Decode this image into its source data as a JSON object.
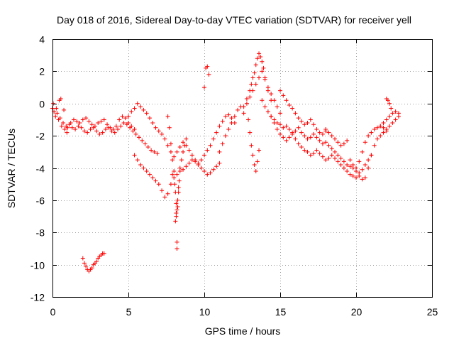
{
  "chart_data": {
    "type": "scatter",
    "title": "Day 018 of 2016, Sidereal Day-to-day VTEC variation (SDTVAR) for receiver yell",
    "xlabel": "GPS time / hours",
    "ylabel": "SDTVAR / TECUs",
    "xlim": [
      0,
      25
    ],
    "ylim": [
      -12,
      4
    ],
    "xticks": [
      0,
      5,
      10,
      15,
      20,
      25
    ],
    "yticks": [
      -12,
      -10,
      -8,
      -6,
      -4,
      -2,
      0,
      2,
      4
    ],
    "xtick_labels": [
      "0",
      "5",
      "10",
      "15",
      "20",
      "25"
    ],
    "ytick_labels": [
      "-12",
      "-10",
      "-8",
      "-6",
      "-4",
      "-2",
      "0",
      "2",
      "4"
    ],
    "grid": true,
    "marker": "+",
    "series": [
      {
        "name": "SDTVAR",
        "color": "#ff0000",
        "x": [
          0.0,
          0.2,
          0.4,
          0.6,
          0.8,
          1.0,
          1.2,
          1.4,
          1.6,
          1.8,
          2.0,
          2.2,
          2.4,
          2.6,
          2.8,
          3.0,
          3.2,
          3.4,
          3.6,
          3.8,
          4.0,
          4.2,
          4.4,
          4.6,
          4.8,
          5.0,
          5.2,
          5.4,
          0.1,
          0.3,
          0.5,
          0.7,
          0.9,
          1.1,
          1.3,
          1.5,
          1.7,
          1.9,
          2.1,
          2.3,
          2.5,
          2.7,
          2.9,
          3.1,
          3.3,
          3.5,
          3.7,
          3.9,
          4.1,
          4.3,
          4.5,
          4.7,
          4.9,
          5.1,
          5.3,
          5.5,
          5.7,
          5.9,
          6.1,
          6.3,
          6.5,
          6.7,
          6.9,
          0.05,
          0.25,
          0.45,
          0.55,
          0.75,
          0.95,
          5.0,
          5.2,
          5.4,
          5.6,
          5.8,
          6.0,
          6.2,
          6.4,
          6.6,
          6.8,
          7.0,
          7.2,
          7.4,
          7.6,
          7.8,
          8.0,
          8.2,
          8.4,
          8.6,
          8.8,
          9.0,
          9.2,
          9.4,
          9.6,
          9.8,
          10.0,
          10.2,
          10.4,
          10.6,
          10.8,
          11.0,
          5.4,
          5.6,
          5.8,
          6.0,
          6.2,
          6.4,
          6.6,
          6.8,
          7.0,
          7.2,
          7.4,
          7.6,
          7.8,
          8.0,
          8.2,
          8.4,
          8.6,
          8.8,
          9.0,
          9.2,
          9.4,
          9.6,
          9.8,
          10.0,
          10.2,
          10.4,
          10.6,
          10.8,
          11.0,
          11.2,
          11.4,
          11.6,
          11.8,
          12.0,
          7.6,
          7.7,
          7.8,
          7.9,
          8.0,
          8.05,
          8.1,
          8.15,
          8.2,
          8.25,
          8.3,
          8.35,
          8.4,
          8.5,
          8.6,
          8.7,
          8.8,
          8.1,
          8.15,
          8.2,
          8.2,
          8.15,
          8.25,
          7.9,
          8.3,
          10.1,
          10.3,
          10.0,
          10.2,
          2.0,
          2.1,
          2.2,
          2.3,
          2.4,
          2.5,
          2.6,
          2.7,
          2.8,
          2.9,
          3.0,
          3.1,
          3.2,
          3.3,
          3.4,
          11.0,
          11.2,
          11.4,
          11.6,
          11.8,
          12.0,
          12.2,
          12.4,
          12.6,
          12.8,
          13.0,
          13.2,
          13.4,
          13.6,
          13.8,
          14.0,
          14.2,
          14.4,
          14.6,
          14.8,
          15.0,
          12.6,
          12.8,
          13.0,
          13.1,
          13.2,
          13.3,
          13.4,
          13.5,
          13.6,
          13.7,
          13.8,
          13.9,
          14.0,
          14.2,
          14.4,
          12.9,
          13.0,
          13.1,
          13.2,
          13.3,
          13.4,
          13.5,
          13.6,
          13.8,
          14.0,
          14.2,
          14.4,
          14.6,
          14.8,
          15.0,
          15.2,
          15.4,
          15.6,
          15.8,
          16.0,
          16.2,
          16.4,
          16.6,
          16.8,
          17.0,
          17.2,
          17.4,
          17.6,
          17.8,
          18.0,
          18.2,
          18.4,
          18.6,
          18.8,
          19.0,
          19.2,
          19.4,
          19.6,
          19.8,
          20.0,
          20.2,
          20.4,
          20.6,
          20.8,
          21.0,
          14.4,
          14.6,
          14.8,
          15.0,
          15.2,
          15.4,
          15.6,
          15.8,
          16.0,
          16.2,
          16.4,
          16.6,
          16.8,
          17.0,
          17.2,
          17.4,
          17.6,
          17.8,
          18.0,
          18.2,
          18.4,
          18.6,
          18.8,
          19.0,
          19.2,
          19.4,
          19.6,
          19.8,
          20.0,
          15.0,
          15.2,
          15.4,
          15.6,
          15.8,
          16.0,
          16.2,
          16.4,
          16.6,
          16.8,
          17.0,
          17.2,
          17.4,
          17.6,
          17.8,
          18.0,
          18.0,
          18.2,
          18.4,
          18.6,
          18.8,
          19.0,
          19.2,
          19.4,
          19.6,
          19.8,
          20.0,
          20.2,
          20.4,
          20.6,
          20.8,
          21.0,
          21.2,
          21.4,
          21.6,
          21.8,
          22.0,
          22.2,
          22.4,
          22.6,
          22.8,
          20.0,
          20.2,
          20.4,
          20.6,
          20.8,
          21.0,
          21.2,
          21.4,
          21.6,
          21.8,
          22.0,
          21.6,
          21.8,
          22.0,
          22.2,
          22.4,
          22.6,
          22.8,
          22.0,
          22.1,
          22.2,
          22.3
        ],
        "y": [
          -0.3,
          -0.8,
          -1.0,
          -1.4,
          -1.6,
          -1.5,
          -1.2,
          -1.0,
          -1.1,
          -1.2,
          -1.0,
          -0.9,
          -1.1,
          -1.3,
          -1.4,
          -1.2,
          -1.1,
          -1.0,
          -1.3,
          -1.5,
          -1.6,
          -1.4,
          -1.0,
          -0.8,
          -0.9,
          -1.2,
          -1.4,
          -1.6,
          -0.5,
          -0.6,
          -0.9,
          -1.2,
          -1.4,
          -1.3,
          -1.5,
          -1.6,
          -1.4,
          -1.5,
          -1.7,
          -1.8,
          -1.6,
          -1.5,
          -1.7,
          -1.9,
          -1.8,
          -1.6,
          -1.5,
          -1.7,
          -1.8,
          -1.6,
          -1.4,
          -1.2,
          -1.3,
          -1.5,
          -1.7,
          -1.9,
          -2.1,
          -2.3,
          -2.5,
          -2.7,
          -2.9,
          -3.0,
          -3.1,
          0.0,
          -0.3,
          0.2,
          0.3,
          -0.4,
          -1.8,
          -0.8,
          -0.5,
          -0.3,
          0.0,
          -0.2,
          -0.4,
          -0.6,
          -0.9,
          -1.2,
          -1.5,
          -1.7,
          -1.9,
          -2.2,
          -2.6,
          -3.0,
          -3.3,
          -3.0,
          -2.7,
          -2.4,
          -2.6,
          -2.9,
          -3.2,
          -3.5,
          -3.8,
          -4.0,
          -4.2,
          -4.4,
          -4.3,
          -4.1,
          -3.9,
          -3.7,
          -3.2,
          -3.5,
          -3.8,
          -4.0,
          -4.2,
          -4.4,
          -4.6,
          -4.8,
          -5.0,
          -5.4,
          -5.8,
          -5.6,
          -5.0,
          -4.6,
          -4.4,
          -4.2,
          -4.1,
          -3.9,
          -3.7,
          -3.5,
          -3.6,
          -3.7,
          -3.5,
          -3.2,
          -2.9,
          -2.6,
          -2.2,
          -1.8,
          -1.4,
          -1.1,
          -0.8,
          -0.7,
          -0.9,
          -1.2,
          -0.8,
          -1.5,
          -2.5,
          -3.5,
          -4.2,
          -5.0,
          -5.5,
          -6.2,
          -6.6,
          -6.0,
          -5.5,
          -4.8,
          -4.0,
          -3.5,
          -3.0,
          -2.6,
          -2.2,
          -7.3,
          -7.0,
          -8.6,
          -9.0,
          -6.8,
          -6.4,
          -4.4,
          -5.2,
          2.2,
          1.8,
          1.0,
          2.3,
          -9.6,
          -9.9,
          -10.1,
          -10.3,
          -10.4,
          -10.3,
          -10.2,
          -10.0,
          -9.9,
          -9.8,
          -9.6,
          -9.5,
          -9.4,
          -9.3,
          -9.3,
          -3.0,
          -2.5,
          -2.0,
          -1.6,
          -1.2,
          -0.8,
          -0.4,
          -0.2,
          -0.6,
          0.0,
          0.4,
          0.8,
          1.2,
          1.6,
          2.0,
          1.5,
          1.0,
          0.6,
          0.2,
          -0.2,
          -0.6,
          -0.2,
          0.3,
          0.8,
          1.2,
          1.6,
          1.9,
          2.4,
          2.8,
          3.1,
          2.9,
          2.6,
          2.2,
          1.6,
          0.8,
          0.2,
          -1.0,
          -1.8,
          -2.6,
          -3.2,
          -3.8,
          -4.2,
          -3.6,
          -2.9,
          0.2,
          -0.2,
          -0.5,
          -0.8,
          -1.0,
          -1.2,
          -1.3,
          -1.5,
          -1.4,
          -1.6,
          -1.8,
          -1.7,
          -1.5,
          -1.8,
          -2.0,
          -2.2,
          -2.1,
          -1.9,
          -2.1,
          -2.3,
          -2.5,
          -2.4,
          -2.6,
          -2.8,
          -3.0,
          -3.2,
          -3.4,
          -3.6,
          -3.8,
          -3.9,
          -4.0,
          -4.2,
          -4.3,
          -4.1,
          -3.8,
          -3.5,
          -3.2,
          -0.8,
          -1.2,
          -1.6,
          -1.9,
          -2.1,
          -2.3,
          -2.1,
          -1.9,
          -2.2,
          -2.5,
          -2.7,
          -2.9,
          -3.0,
          -3.2,
          -3.1,
          -2.9,
          -3.1,
          -3.3,
          -3.5,
          -3.4,
          -3.2,
          -3.4,
          -3.6,
          -3.8,
          -4.0,
          -4.2,
          -4.4,
          -4.5,
          -4.6,
          0.8,
          0.5,
          0.2,
          -0.1,
          -0.3,
          -0.6,
          -0.9,
          -1.1,
          -1.3,
          -1.2,
          -1.0,
          -1.3,
          -1.6,
          -1.8,
          -1.9,
          -1.7,
          -1.6,
          -1.8,
          -2.0,
          -2.2,
          -2.4,
          -2.6,
          -2.5,
          -2.3,
          -3.5,
          -3.8,
          -4.0,
          -3.6,
          -3.0,
          -2.4,
          -2.0,
          -1.8,
          -1.6,
          -1.5,
          -1.4,
          -1.5,
          -1.6,
          -1.4,
          -1.2,
          -1.0,
          -0.8,
          -4.2,
          -4.5,
          -4.7,
          -4.6,
          -4.0,
          -3.2,
          -2.6,
          -2.2,
          -2.0,
          -1.8,
          -1.7,
          -1.4,
          -1.2,
          -1.0,
          -0.8,
          -0.6,
          -0.5,
          -0.6,
          0.3,
          0.2,
          0.0,
          -0.3
        ]
      }
    ]
  }
}
